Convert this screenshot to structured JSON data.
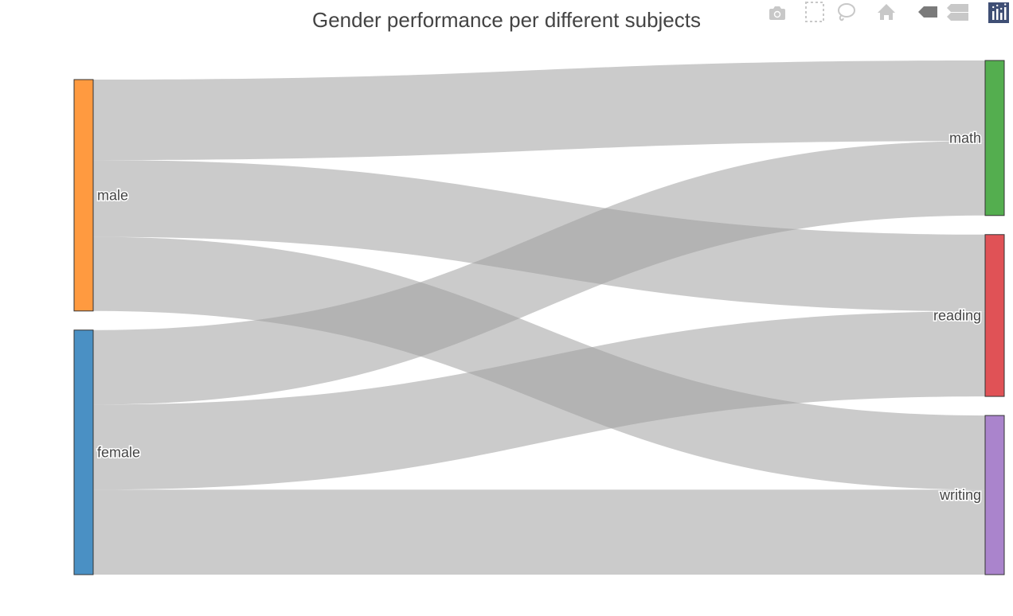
{
  "chart_data": {
    "type": "sankey",
    "title": "Gender performance per different subjects",
    "nodes": [
      {
        "id": "male",
        "label": "male",
        "color": "#ff9a40"
      },
      {
        "id": "female",
        "label": "female",
        "color": "#4a90c4"
      },
      {
        "id": "math",
        "label": "math",
        "color": "#54ae4f"
      },
      {
        "id": "reading",
        "label": "reading",
        "color": "#e05256"
      },
      {
        "id": "writing",
        "label": "writing",
        "color": "#aa84cc"
      }
    ],
    "links": [
      {
        "source": "male",
        "target": "math",
        "value": 68.7
      },
      {
        "source": "male",
        "target": "reading",
        "value": 65.5
      },
      {
        "source": "male",
        "target": "writing",
        "value": 63.3
      },
      {
        "source": "female",
        "target": "math",
        "value": 63.6
      },
      {
        "source": "female",
        "target": "reading",
        "value": 72.6
      },
      {
        "source": "female",
        "target": "writing",
        "value": 72.5
      }
    ],
    "link_color": "rgba(160,160,160,0.55)"
  },
  "modebar": {
    "buttons": [
      "camera-icon",
      "box-select-icon",
      "lasso-icon",
      "home-icon",
      "hover-closest-icon",
      "hover-compare-icon",
      "plotly-logo-icon"
    ]
  }
}
